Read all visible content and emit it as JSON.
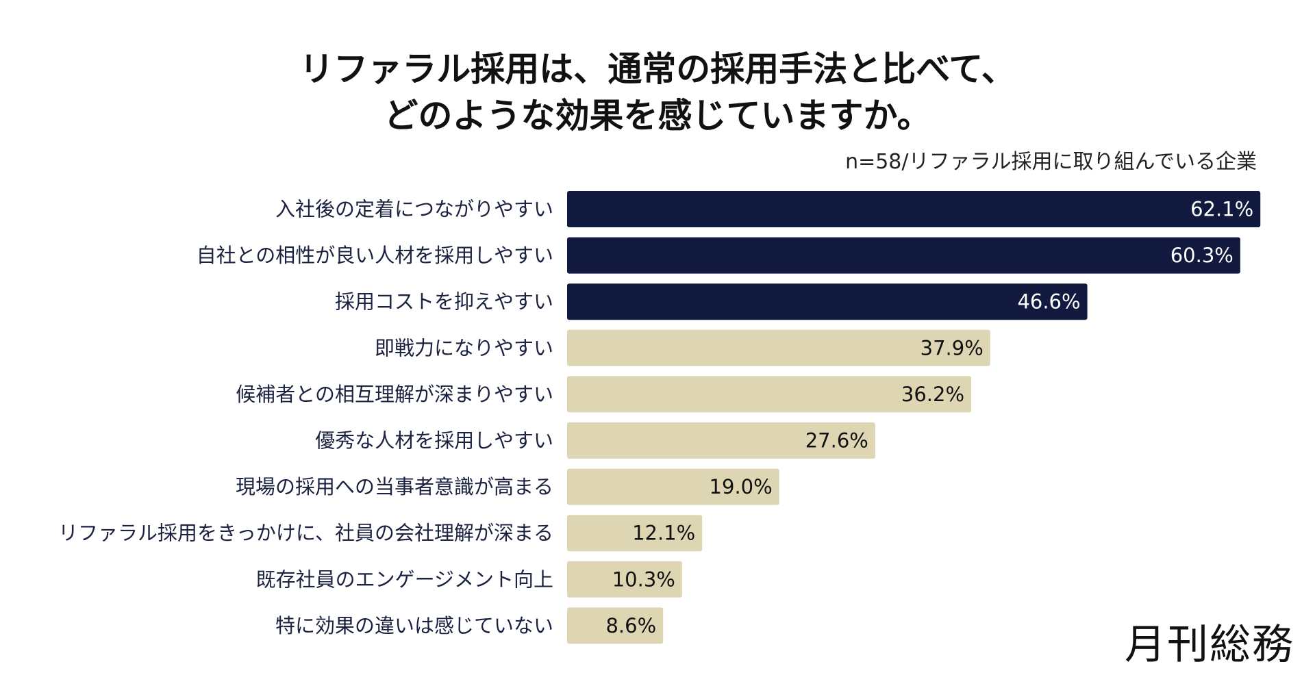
{
  "chart_data": {
    "type": "bar",
    "orientation": "horizontal",
    "title_lines": [
      "リファラル採用は、通常の採用手法と比べて、",
      "どのような効果を感じていますか。"
    ],
    "subtitle": "n=58/リファラル採用に取り組んでいる企業",
    "categories": [
      "入社後の定着につながりやすい",
      "自社との相性が良い人材を採用しやすい",
      "採用コストを抑えやすい",
      "即戦力になりやすい",
      "候補者との相互理解が深まりやすい",
      "優秀な人材を採用しやすい",
      "現場の採用への当事者意識が高まる",
      "リファラル採用をきっかけに、社員の会社理解が深まる",
      "既存社員のエンゲージメント向上",
      "特に効果の違いは感じていない"
    ],
    "values": [
      62.1,
      60.3,
      46.6,
      37.9,
      36.2,
      27.6,
      19.0,
      12.1,
      10.3,
      8.6
    ],
    "value_labels": [
      "62.1%",
      "60.3%",
      "46.6%",
      "37.9%",
      "36.2%",
      "27.6%",
      "19.0%",
      "12.1%",
      "10.3%",
      "8.6%"
    ],
    "highlight_count": 3,
    "colors": {
      "highlight_bar": "#111a3e",
      "normal_bar": "#ded6b2",
      "highlight_label": "#ffffff",
      "normal_label": "#111111",
      "category_label": "#1b2240"
    },
    "legend": "none",
    "grid": false
  },
  "brand": {
    "name": "月刊総務"
  }
}
